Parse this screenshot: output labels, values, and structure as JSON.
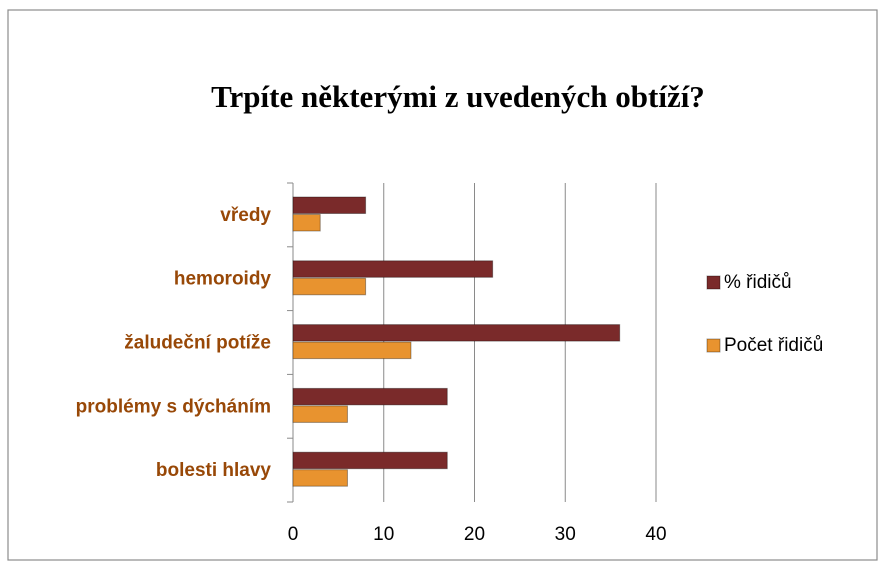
{
  "chart_data": {
    "type": "hbar",
    "title": "Trpíte některými z uvedených obtíží?",
    "categories": [
      "vředy",
      "hemoroidy",
      "žaludeční potíže",
      "problémy s dýcháním",
      "bolesti hlavy"
    ],
    "series": [
      {
        "name": "% řidičů",
        "color": "#7a2a2a",
        "values": [
          8,
          22,
          36,
          17,
          17
        ]
      },
      {
        "name": "Počet řidičů",
        "color": "#e8932f",
        "values": [
          3,
          8,
          13,
          6,
          6
        ]
      }
    ],
    "xlim": [
      0,
      40
    ],
    "xticks": [
      0,
      10,
      20,
      30,
      40
    ],
    "grid": true,
    "legend": "right"
  }
}
